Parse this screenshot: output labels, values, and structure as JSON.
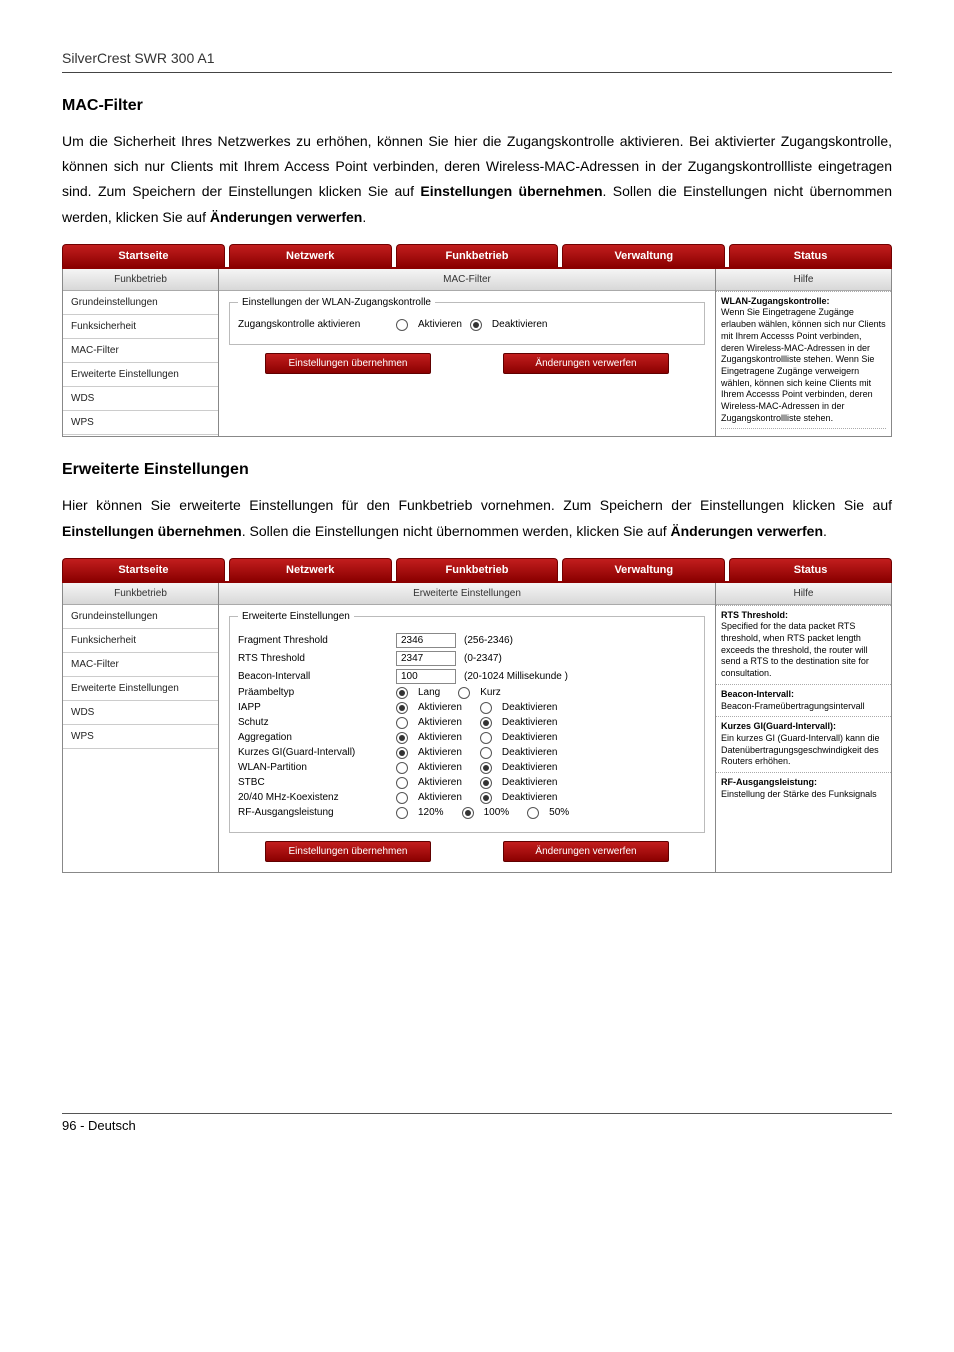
{
  "header": {
    "product": "SilverCrest SWR 300 A1"
  },
  "footer": {
    "text": "96 - Deutsch"
  },
  "colors": {
    "tab_bg_top": "#c21e1e",
    "tab_bg_bottom": "#8b0000",
    "tab_text": "#ffffff",
    "panel_border": "#888888",
    "sidebar_border": "#cccccc"
  },
  "section1": {
    "title": "MAC-Filter",
    "para_a": "Um die Sicherheit Ihres Netzwerkes zu erhöhen, können Sie hier die Zugangskontrolle aktivieren. Bei aktivierter Zugangskontrolle, können sich nur Clients mit Ihrem Access Point verbinden, deren Wireless-MAC-Adressen in der Zugangskontrollliste eingetragen sind. Zum Speichern der Einstellungen klicken Sie auf ",
    "para_b": "Einstellungen übernehmen",
    "para_c": ". Sollen die Einstellungen nicht übernommen werden, klicken Sie auf ",
    "para_d": "Änderungen verwerfen",
    "para_e": ".",
    "shot": {
      "tabs": [
        "Startseite",
        "Netzwerk",
        "Funkbetrieb",
        "Verwaltung",
        "Status"
      ],
      "sidebar_head": "Funkbetrieb",
      "sidebar": [
        "Grundeinstellungen",
        "Funksicherheit",
        "MAC-Filter",
        "Erweiterte Einstellungen",
        "WDS",
        "WPS"
      ],
      "content_head": "MAC-Filter",
      "fieldset_legend": "Einstellungen der WLAN-Zugangskontrolle",
      "row1_label": "Zugangskontrolle aktivieren",
      "opt_on": "Aktivieren",
      "opt_off": "Deaktivieren",
      "btn_save": "Einstellungen übernehmen",
      "btn_cancel": "Änderungen verwerfen",
      "help_head": "Hilfe",
      "help_title": "WLAN-Zugangskontrolle:",
      "help_text": "Wenn Sie Eingetragene Zugänge erlauben wählen, können sich nur Clients mit Ihrem Accesss Point verbinden, deren Wireless-MAC-Adressen in der Zugangskontrollliste stehen. Wenn Sie Eingetragene Zugänge verweigern wählen, können sich keine Clients mit Ihrem Accesss Point verbinden, deren Wireless-MAC-Adressen in der Zugangskontrollliste stehen."
    }
  },
  "section2": {
    "title": "Erweiterte Einstellungen",
    "para_a": "Hier können Sie erweiterte Einstellungen für den Funkbetrieb vornehmen. Zum Speichern der Einstellungen klicken Sie auf ",
    "para_b": "Einstellungen übernehmen",
    "para_c": ". Sollen die Einstellungen nicht übernommen werden, klicken Sie auf ",
    "para_d": "Änderungen verwerfen",
    "para_e": ".",
    "shot": {
      "tabs": [
        "Startseite",
        "Netzwerk",
        "Funkbetrieb",
        "Verwaltung",
        "Status"
      ],
      "sidebar_head": "Funkbetrieb",
      "sidebar": [
        "Grundeinstellungen",
        "Funksicherheit",
        "MAC-Filter",
        "Erweiterte Einstellungen",
        "WDS",
        "WPS"
      ],
      "content_head": "Erweiterte Einstellungen",
      "fieldset_legend": "Erweiterte Einstellungen",
      "rows": [
        {
          "label": "Fragment Threshold",
          "type": "text",
          "value": "2346",
          "hint": "(256-2346)"
        },
        {
          "label": "RTS Threshold",
          "type": "text",
          "value": "2347",
          "hint": "(0-2347)"
        },
        {
          "label": "Beacon-Intervall",
          "type": "text",
          "value": "100",
          "hint": "(20-1024 Millisekunde )"
        },
        {
          "label": "Präambeltyp",
          "type": "radio2",
          "a": "Lang",
          "b": "Kurz",
          "sel": "a"
        },
        {
          "label": "IAPP",
          "type": "radio2",
          "a": "Aktivieren",
          "b": "Deaktivieren",
          "sel": "a"
        },
        {
          "label": "Schutz",
          "type": "radio2",
          "a": "Aktivieren",
          "b": "Deaktivieren",
          "sel": "b"
        },
        {
          "label": "Aggregation",
          "type": "radio2",
          "a": "Aktivieren",
          "b": "Deaktivieren",
          "sel": "a"
        },
        {
          "label": "Kurzes GI(Guard-Intervall)",
          "type": "radio2",
          "a": "Aktivieren",
          "b": "Deaktivieren",
          "sel": "a"
        },
        {
          "label": "WLAN-Partition",
          "type": "radio2",
          "a": "Aktivieren",
          "b": "Deaktivieren",
          "sel": "b"
        },
        {
          "label": "STBC",
          "type": "radio2",
          "a": "Aktivieren",
          "b": "Deaktivieren",
          "sel": "b"
        },
        {
          "label": "20/40 MHz-Koexistenz",
          "type": "radio2",
          "a": "Aktivieren",
          "b": "Deaktivieren",
          "sel": "b"
        },
        {
          "label": "RF-Ausgangsleistung",
          "type": "radio3",
          "a": "120%",
          "b": "100%",
          "c": "50%",
          "sel": "b"
        }
      ],
      "btn_save": "Einstellungen übernehmen",
      "btn_cancel": "Änderungen verwerfen",
      "help_head": "Hilfe",
      "help_blocks": [
        {
          "title": "RTS Threshold:",
          "text": "Specified for the data packet RTS threshold, when RTS packet length exceeds the threshold, the router will send a RTS to the destination site for consultation."
        },
        {
          "title": "Beacon-Intervall:",
          "text": "Beacon-Frameübertragungsintervall"
        },
        {
          "title": "Kurzes GI(Guard-Intervall):",
          "text": "Ein kurzes GI (Guard-Intervall) kann die Datenübertragungsgeschwindigkeit des Routers erhöhen."
        },
        {
          "title": "RF-Ausgangsleistung:",
          "text": "Einstellung der Stärke des Funksignals"
        }
      ]
    }
  }
}
